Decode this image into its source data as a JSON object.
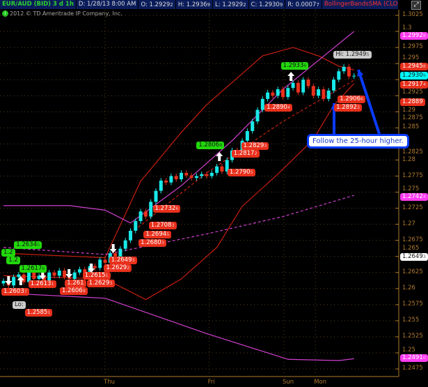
{
  "header": {
    "symbol": "EUR/AUD (BID) 3 d 1h",
    "date": "D: 1/28/13 8:00 AM",
    "open": "O: 1.2929",
    "open_s": "2",
    "high": "H: 1.2936",
    "high_s": "9",
    "low": "L: 1.2929",
    "low_s": "2",
    "close": "C: 1.2930",
    "close_s": "9",
    "range": "R: 0.0007",
    "range_s": "7",
    "study": "BollingerBandsSMA (CLOSE, 0, 25, -2..."
  },
  "copyright": "2012 © TD Ameritrade IP Company, Inc.",
  "callout": "Follow the 25-hour higher.",
  "colors": {
    "bull": "#19e8e8",
    "bear": "#e8301c",
    "band": "#c81e10",
    "sma": "#d040d0",
    "axis": "#b07a30",
    "callout": "#0a3cff"
  },
  "chart_data": {
    "type": "candlestick",
    "ylim": [
      1.2475,
      1.3025
    ],
    "y_ticks": [
      "1.3025",
      "1.3",
      "1.2975",
      "1.295",
      "1.2925",
      "1.29",
      "1.2875",
      "1.285",
      "1.2825",
      "1.28",
      "1.2775",
      "1.275",
      "1.2725",
      "1.27",
      "1.2675",
      "1.265",
      "1.2625",
      "1.26",
      "1.2575",
      "1.255",
      "1.2525",
      "1.25",
      "1.2475"
    ],
    "x_days": [
      {
        "label": "Thu",
        "index": 20
      },
      {
        "label": "Fri",
        "index": 40.5
      },
      {
        "label": "Sun",
        "index": 55.2
      },
      {
        "label": "Mon",
        "index": 61.4
      }
    ],
    "closes": [
      1.2612,
      1.2605,
      1.2618,
      1.2622,
      1.261,
      1.2625,
      1.2615,
      1.262,
      1.2612,
      1.2625,
      1.262,
      1.2628,
      1.2618,
      1.2615,
      1.2625,
      1.263,
      1.2622,
      1.2635,
      1.2632,
      1.2645,
      1.264,
      1.2655,
      1.265,
      1.2662,
      1.2675,
      1.269,
      1.2705,
      1.272,
      1.2712,
      1.2735,
      1.2752,
      1.2768,
      1.2765,
      1.2775,
      1.277,
      1.278,
      1.2776,
      1.2772,
      1.2775,
      1.2778,
      1.2775,
      1.278,
      1.279,
      1.2782,
      1.28,
      1.2815,
      1.281,
      1.283,
      1.2845,
      1.286,
      1.2878,
      1.2895,
      1.2905,
      1.29,
      1.291,
      1.2898,
      1.2912,
      1.292,
      1.2905,
      1.2925,
      1.2915,
      1.29,
      1.291,
      1.2895,
      1.2908,
      1.2925,
      1.2938,
      1.2945,
      1.293,
      1.2931
    ],
    "lines": [
      {
        "style": "band",
        "dash": false,
        "points": [
          [
            0,
            1.2655
          ],
          [
            20,
            1.2648
          ],
          [
            27,
            1.2767
          ],
          [
            35,
            1.2843
          ],
          [
            40,
            1.2886
          ],
          [
            51,
            1.2962
          ],
          [
            57,
            1.2975
          ],
          [
            62,
            1.2962
          ],
          [
            66,
            1.2946
          ],
          [
            69,
            1.294
          ]
        ]
      },
      {
        "style": "band",
        "dash": false,
        "points": [
          [
            0,
            1.262
          ],
          [
            20,
            1.2615
          ],
          [
            28,
            1.2583
          ],
          [
            35,
            1.2615
          ],
          [
            42,
            1.2664
          ],
          [
            47,
            1.2728
          ],
          [
            54,
            1.2778
          ],
          [
            61,
            1.2832
          ],
          [
            65,
            1.2885
          ],
          [
            69,
            1.2919
          ]
        ]
      },
      {
        "style": "band",
        "dash": true,
        "points": [
          [
            25,
            1.2686
          ],
          [
            40,
            1.278
          ],
          [
            55,
            1.286
          ],
          [
            69,
            1.2924
          ]
        ]
      },
      {
        "style": "sma",
        "dash": false,
        "points": [
          [
            0,
            1.2729
          ],
          [
            13,
            1.2729
          ],
          [
            20,
            1.2722
          ],
          [
            25,
            1.2702
          ],
          [
            35,
            1.276
          ],
          [
            45,
            1.283
          ],
          [
            55,
            1.291
          ],
          [
            69,
            1.3
          ]
        ]
      },
      {
        "style": "sma",
        "dash": false,
        "points": [
          [
            0,
            1.2593
          ],
          [
            20,
            1.2585
          ],
          [
            40,
            1.253
          ],
          [
            56,
            1.249
          ],
          [
            66,
            1.2488
          ],
          [
            69,
            1.2491
          ]
        ]
      },
      {
        "style": "sma",
        "dash": true,
        "points": [
          [
            0,
            1.2664
          ],
          [
            20,
            1.2653
          ],
          [
            40,
            1.2685
          ],
          [
            55,
            1.2712
          ],
          [
            69,
            1.2745
          ]
        ]
      }
    ],
    "labels": [
      {
        "c": "green",
        "v": "1.2",
        "s": "",
        "i": 0,
        "y": 357
      },
      {
        "c": "green",
        "v": "1.2",
        "s": "",
        "i": 1,
        "y": 361
      },
      {
        "c": "green",
        "v": "1.2634",
        "s": "5",
        "i": 2.5,
        "y": 362
      },
      {
        "c": "green",
        "v": "1.2617",
        "s": "6",
        "i": 3.5,
        "y": 380
      },
      {
        "c": "red",
        "v": "1.2603",
        "s": "7",
        "i": 0,
        "y": 413
      },
      {
        "c": "gray",
        "v": "Lo:",
        "s": "",
        "i": 2.2,
        "y": 432
      },
      {
        "c": "red",
        "v": "1.2585",
        "s": "1",
        "i": 4.6,
        "y": 432
      },
      {
        "c": "red",
        "v": "1.2613",
        "s": "1",
        "i": 5.3,
        "y": 403
      },
      {
        "c": "red",
        "v": "1.2606",
        "s": "9",
        "i": 11.5,
        "y": 412
      },
      {
        "c": "red",
        "v": "1.261",
        "s": "",
        "i": 12.5,
        "y": 403
      },
      {
        "c": "red",
        "v": "1.2615",
        "s": "1",
        "i": 16,
        "y": 403
      },
      {
        "c": "red",
        "v": "1.2629",
        "s": "3",
        "i": 16.8,
        "y": 393
      },
      {
        "c": "red",
        "v": "1.2629",
        "s": "2",
        "i": 20.2,
        "y": 390
      },
      {
        "c": "red",
        "v": "1.2649",
        "s": "3",
        "i": 21.2,
        "y": 372
      },
      {
        "c": "red",
        "v": "1.2680",
        "s": "3",
        "i": 27,
        "y": 343
      },
      {
        "c": "red",
        "v": "1.2694",
        "s": "5",
        "i": 28,
        "y": 331
      },
      {
        "c": "red",
        "v": "1.2708",
        "s": "3",
        "i": 29,
        "y": 318
      },
      {
        "c": "red",
        "v": "1.2732",
        "s": "6",
        "i": 29.8,
        "y": 294
      },
      {
        "c": "green",
        "v": "1.2806",
        "s": "8",
        "i": 38.4,
        "y": 203
      },
      {
        "c": "red",
        "v": "1.2790",
        "s": "5",
        "i": 44.5,
        "y": 242
      },
      {
        "c": "red",
        "v": "1.2817",
        "s": "2",
        "i": 45.3,
        "y": 215
      },
      {
        "c": "red",
        "v": "1.2829",
        "s": "3",
        "i": 47.2,
        "y": 205
      },
      {
        "c": "green",
        "v": "1.2933",
        "s": "6",
        "i": 55,
        "y": 89
      },
      {
        "c": "red",
        "v": "1.2890",
        "s": "4",
        "i": 51.8,
        "y": 149
      },
      {
        "c": "gray",
        "v": "Hi: 1.2949",
        "s": "5",
        "i": 65.4,
        "y": 73
      },
      {
        "c": "red",
        "v": "1.2906",
        "s": "6",
        "i": 66.2,
        "y": 137
      },
      {
        "c": "red",
        "v": "1.2892",
        "s": "3",
        "i": 65.5,
        "y": 149
      }
    ],
    "arrows": [
      {
        "d": "down",
        "i": 1,
        "y": 396
      },
      {
        "d": "up",
        "i": 3.4,
        "y": 396
      },
      {
        "d": "down",
        "i": 7.7,
        "y": 388
      },
      {
        "d": "down",
        "i": 12.9,
        "y": 386
      },
      {
        "d": "down",
        "i": 17.3,
        "y": 378
      },
      {
        "d": "down",
        "i": 21.6,
        "y": 350
      },
      {
        "d": "up",
        "i": 42.5,
        "y": 218
      },
      {
        "d": "up",
        "i": 56.6,
        "y": 103
      }
    ],
    "axis_badges": [
      {
        "c": "mag",
        "v": "1.2992",
        "s": "8",
        "p": 1.2992
      },
      {
        "c": "red",
        "v": "1.2945",
        "s": "8",
        "p": 1.2945
      },
      {
        "c": "cyan",
        "v": "1.2930",
        "s": "9",
        "p": 1.2931
      },
      {
        "c": "red",
        "v": "1.2917",
        "s": "4",
        "p": 1.2917
      },
      {
        "c": "red",
        "v": "1.2889",
        "s": "",
        "p": 1.2889
      },
      {
        "c": "mag",
        "v": "1.2742",
        "s": "4",
        "p": 1.2742
      },
      {
        "c": "white",
        "v": "1.2649",
        "s": "3",
        "p": 1.2649
      },
      {
        "c": "mag",
        "v": "1.2491",
        "s": "0",
        "p": 1.2491
      }
    ]
  }
}
